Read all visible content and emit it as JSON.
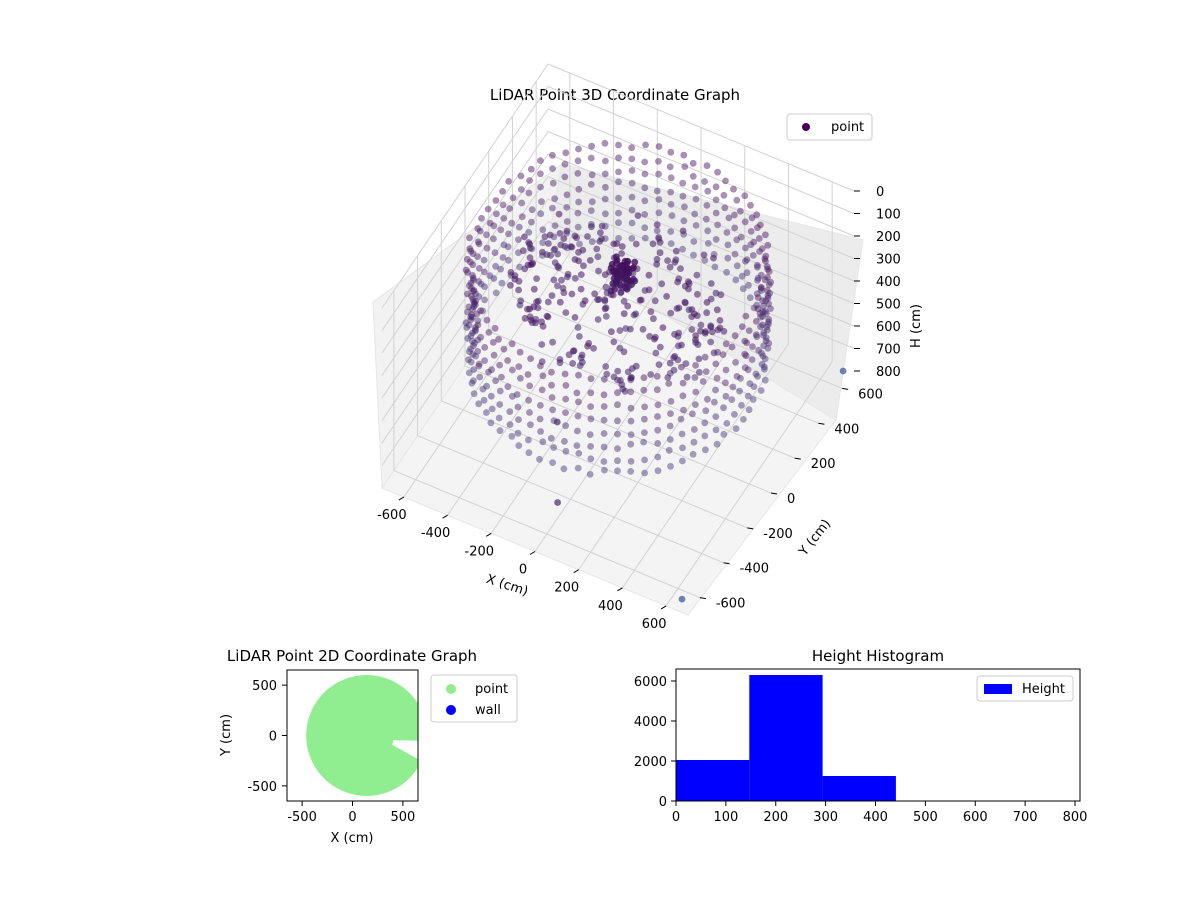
{
  "chart_data": [
    {
      "type": "scatter3d",
      "title": "LiDAR Point 3D Coordinate Graph",
      "xlabel": "X (cm)",
      "ylabel": "Y (cm)",
      "zlabel": "H (cm)",
      "xlim": [
        -700,
        700
      ],
      "ylim": [
        -700,
        700
      ],
      "zlim": [
        800,
        0
      ],
      "x_ticks": [
        "-600",
        "-400",
        "-200",
        "0",
        "200",
        "400",
        "600"
      ],
      "y_ticks": [
        "-600",
        "-400",
        "-200",
        "0",
        "200",
        "400",
        "600"
      ],
      "z_ticks": [
        "0",
        "100",
        "200",
        "300",
        "400",
        "500",
        "600",
        "700",
        "800"
      ],
      "grid": true,
      "legend": {
        "placement": "top-right",
        "entries": [
          {
            "label": "point",
            "color": "#440154"
          }
        ]
      },
      "colormap": "viridis",
      "series": [
        {
          "name": "point",
          "kind": "ring-wall",
          "radius": 600,
          "height_range": [
            60,
            470
          ],
          "points_per_ring": 70,
          "levels": 8
        },
        {
          "name": "point",
          "kind": "floor-cluster",
          "height_range": [
            120,
            330
          ]
        },
        {
          "name": "point",
          "kind": "outliers",
          "points": [
            [
              60,
              -620,
              620
            ],
            [
              -180,
              -180,
              700
            ],
            [
              640,
              -640,
              800
            ],
            [
              650,
              700,
              820
            ]
          ]
        }
      ]
    },
    {
      "type": "scatter",
      "title": "LiDAR Point 2D Coordinate Graph",
      "xlabel": "X (cm)",
      "ylabel": "Y (cm)",
      "xlim": [
        -650,
        650
      ],
      "ylim": [
        -650,
        650
      ],
      "x_ticks": [
        "-500",
        "0",
        "500"
      ],
      "y_ticks": [
        "500",
        "0",
        "-500"
      ],
      "legend": {
        "placement": "outside-right",
        "entries": [
          {
            "label": "point",
            "color": "#90EE90"
          },
          {
            "label": "wall",
            "color": "#0000FF"
          }
        ]
      },
      "series": [
        {
          "name": "point",
          "color": "#90EE90",
          "shape": "disc",
          "radius": 600,
          "notch": {
            "angle_from_deg": -25,
            "angle_to_deg": -5,
            "inner_radius": 270
          }
        },
        {
          "name": "wall",
          "color": "#0000FF",
          "points": []
        }
      ]
    },
    {
      "type": "bar",
      "title": "Height Histogram",
      "xlim": [
        0,
        810
      ],
      "ylim": [
        0,
        6600
      ],
      "x_ticks": [
        "0",
        "100",
        "200",
        "300",
        "400",
        "500",
        "600",
        "700",
        "800"
      ],
      "y_ticks": [
        "0",
        "2000",
        "4000",
        "6000"
      ],
      "legend": {
        "placement": "top-right",
        "entries": [
          {
            "label": "Height",
            "color": "#0000FF"
          }
        ]
      },
      "bins": [
        {
          "from": 0,
          "to": 147,
          "count": 2050
        },
        {
          "from": 147,
          "to": 294,
          "count": 6300
        },
        {
          "from": 294,
          "to": 441,
          "count": 1250
        },
        {
          "from": 441,
          "to": 588,
          "count": 0
        },
        {
          "from": 588,
          "to": 735,
          "count": 0
        },
        {
          "from": 735,
          "to": 810,
          "count": 0
        }
      ],
      "color": "#0000FF"
    }
  ]
}
